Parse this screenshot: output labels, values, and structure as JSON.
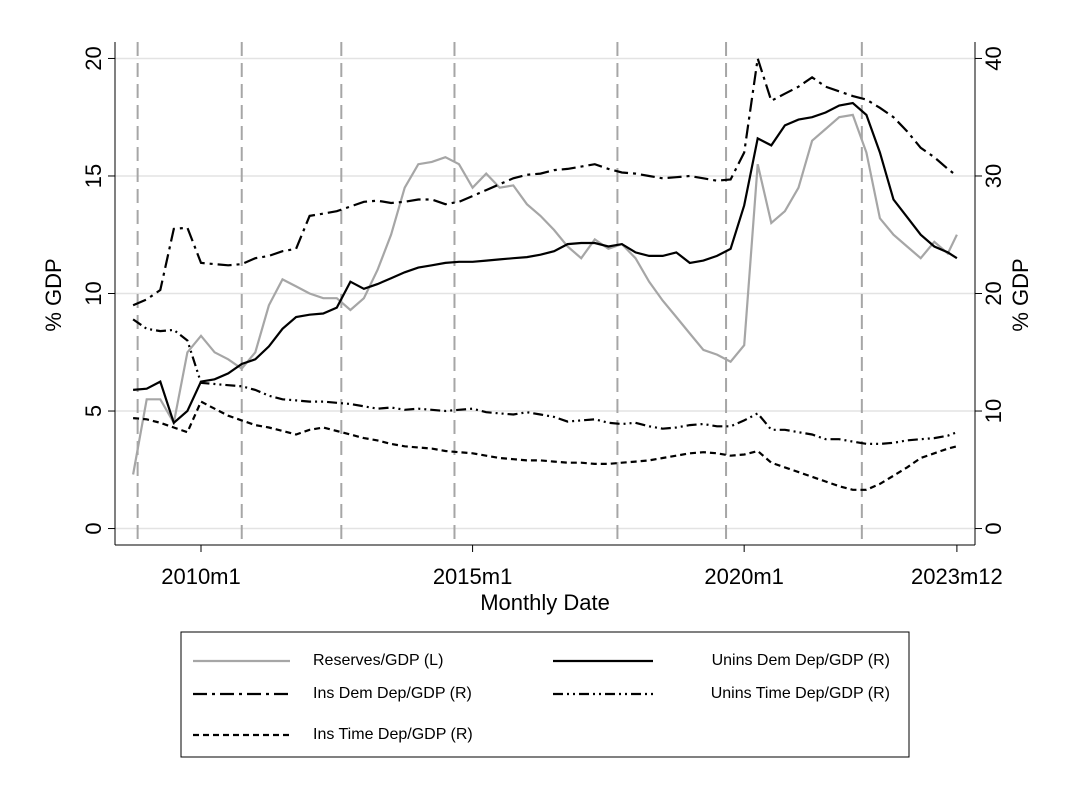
{
  "chart_data": {
    "type": "line",
    "x_label": "Monthly Date",
    "y_label": "% GDP",
    "y2_label": "% GDP",
    "xlim": [
      "2008m6",
      "2024m4"
    ],
    "xticks": [
      "2010m1",
      "2015m1",
      "2020m1",
      "2023m12"
    ],
    "ylim": [
      -0.7,
      20.7
    ],
    "yticks": [
      0,
      5,
      10,
      15,
      20
    ],
    "y2lim": [
      -1.4,
      41.4
    ],
    "y2ticks": [
      0,
      10,
      20,
      30,
      40
    ],
    "grid": true,
    "xlines": [
      "2008m11",
      "2010m10",
      "2012m8",
      "2014m9",
      "2017m9",
      "2019m9",
      "2022m3"
    ],
    "x": [
      "2008m10",
      "2009m1",
      "2009m4",
      "2009m7",
      "2009m10",
      "2010m1",
      "2010m4",
      "2010m7",
      "2010m10",
      "2011m1",
      "2011m4",
      "2011m7",
      "2011m10",
      "2012m1",
      "2012m4",
      "2012m7",
      "2012m10",
      "2013m1",
      "2013m4",
      "2013m7",
      "2013m10",
      "2014m1",
      "2014m4",
      "2014m7",
      "2014m10",
      "2015m1",
      "2015m4",
      "2015m7",
      "2015m10",
      "2016m1",
      "2016m4",
      "2016m7",
      "2016m10",
      "2017m1",
      "2017m4",
      "2017m7",
      "2017m10",
      "2018m1",
      "2018m4",
      "2018m7",
      "2018m10",
      "2019m1",
      "2019m4",
      "2019m7",
      "2019m10",
      "2020m1",
      "2020m4",
      "2020m7",
      "2020m10",
      "2021m1",
      "2021m4",
      "2021m7",
      "2021m10",
      "2022m1",
      "2022m4",
      "2022m7",
      "2022m10",
      "2023m1",
      "2023m4",
      "2023m7",
      "2023m10",
      "2023m12"
    ],
    "series": [
      {
        "name": "Reserves/GDP (L)",
        "color": "#a6a6a6",
        "dash": "solid",
        "axis": "y",
        "values": [
          2.3,
          5.5,
          5.5,
          4.5,
          7.5,
          8.2,
          7.5,
          7.2,
          6.8,
          7.5,
          9.5,
          10.6,
          10.3,
          10.0,
          9.8,
          9.8,
          9.3,
          9.8,
          11.0,
          12.5,
          14.5,
          15.5,
          15.6,
          15.8,
          15.5,
          14.5,
          15.1,
          14.5,
          14.6,
          13.8,
          13.3,
          12.7,
          12.0,
          11.5,
          12.3,
          11.9,
          12.1,
          11.5,
          10.5,
          9.7,
          9.0,
          8.3,
          7.6,
          7.4,
          7.1,
          7.8,
          15.5,
          13.0,
          13.5,
          14.5,
          16.5,
          17.0,
          17.5,
          17.6,
          16.0,
          13.2,
          12.5,
          12.0,
          11.5,
          12.2,
          11.7,
          12.5
        ]
      },
      {
        "name": "Unins Dem Dep/GDP (R)",
        "color": "#000000",
        "dash": "solid",
        "axis": "y2",
        "values": [
          11.8,
          11.9,
          12.5,
          9.0,
          10.0,
          12.5,
          12.7,
          13.2,
          14.0,
          14.4,
          15.5,
          17.0,
          18.0,
          18.2,
          18.3,
          18.8,
          21.0,
          20.4,
          20.8,
          21.3,
          21.8,
          22.2,
          22.4,
          22.6,
          22.7,
          22.7,
          22.8,
          22.9,
          23.0,
          23.1,
          23.3,
          23.6,
          24.2,
          24.3,
          24.3,
          24.0,
          24.2,
          23.5,
          23.2,
          23.2,
          23.5,
          22.6,
          22.8,
          23.2,
          23.8,
          27.5,
          33.2,
          32.6,
          34.3,
          34.8,
          35.0,
          35.4,
          36.0,
          36.2,
          35.2,
          32.0,
          28.0,
          26.5,
          25.0,
          24.0,
          23.5,
          23.0
        ]
      },
      {
        "name": "Ins Dem Dep/GDP (R)",
        "color": "#000000",
        "dash": "dashdot",
        "axis": "y2",
        "values": [
          19.0,
          19.5,
          20.3,
          25.5,
          25.6,
          22.6,
          22.5,
          22.4,
          22.5,
          23.0,
          23.2,
          23.6,
          23.8,
          26.6,
          26.8,
          27.0,
          27.4,
          27.8,
          27.9,
          27.7,
          27.8,
          28.0,
          28.0,
          27.6,
          27.8,
          28.3,
          28.8,
          29.3,
          29.8,
          30.1,
          30.2,
          30.5,
          30.6,
          30.8,
          31.0,
          30.6,
          30.3,
          30.2,
          30.0,
          29.8,
          29.9,
          30.0,
          29.8,
          29.6,
          29.7,
          32.0,
          40.0,
          36.4,
          37.0,
          37.6,
          38.4,
          37.6,
          37.2,
          36.8,
          36.5,
          35.8,
          35.0,
          33.8,
          32.4,
          31.6,
          30.6,
          30.0
        ]
      },
      {
        "name": "Unins Time Dep/GDP (R)",
        "color": "#000000",
        "dash": "dashdotdot",
        "axis": "y2",
        "values": [
          17.8,
          17.0,
          16.8,
          16.9,
          16.0,
          12.4,
          12.3,
          12.2,
          12.1,
          11.8,
          11.3,
          11.0,
          10.9,
          10.8,
          10.8,
          10.7,
          10.6,
          10.4,
          10.2,
          10.3,
          10.1,
          10.2,
          10.1,
          10.0,
          10.1,
          10.2,
          9.9,
          9.8,
          9.7,
          9.9,
          9.7,
          9.5,
          9.1,
          9.2,
          9.3,
          9.0,
          8.9,
          9.0,
          8.7,
          8.5,
          8.6,
          8.8,
          8.9,
          8.7,
          8.7,
          9.2,
          9.8,
          8.4,
          8.4,
          8.2,
          8.0,
          7.6,
          7.6,
          7.4,
          7.2,
          7.2,
          7.3,
          7.5,
          7.6,
          7.7,
          7.9,
          8.2
        ]
      },
      {
        "name": "Ins Time Dep/GDP (R)",
        "color": "#000000",
        "dash": "dashed",
        "axis": "y2",
        "values": [
          9.4,
          9.3,
          9.0,
          8.6,
          8.2,
          10.8,
          10.2,
          9.6,
          9.2,
          8.8,
          8.6,
          8.3,
          8.0,
          8.4,
          8.6,
          8.3,
          8.0,
          7.7,
          7.5,
          7.2,
          7.0,
          6.9,
          6.8,
          6.6,
          6.5,
          6.4,
          6.2,
          6.0,
          5.9,
          5.8,
          5.8,
          5.7,
          5.6,
          5.6,
          5.5,
          5.5,
          5.6,
          5.7,
          5.8,
          6.0,
          6.2,
          6.4,
          6.5,
          6.4,
          6.2,
          6.3,
          6.6,
          5.6,
          5.2,
          4.8,
          4.4,
          4.0,
          3.6,
          3.3,
          3.3,
          3.8,
          4.5,
          5.2,
          6.0,
          6.4,
          6.8,
          7.0
        ]
      }
    ]
  }
}
